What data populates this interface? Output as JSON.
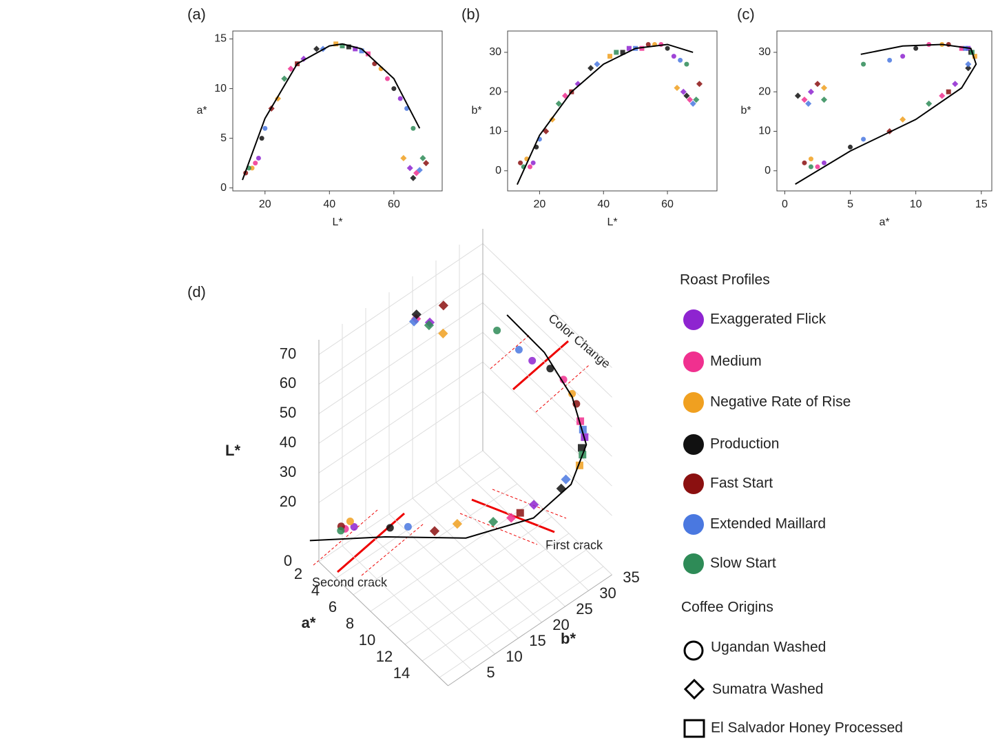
{
  "chart_data": [
    {
      "type": "scatter",
      "label": "(a)",
      "x_label": "L*",
      "y_label": "a*",
      "xlim": [
        10,
        75
      ],
      "ylim": [
        -0.3,
        15.8
      ],
      "xticks": [
        20,
        40,
        60
      ],
      "yticks": [
        0,
        5,
        10,
        15
      ],
      "series": [
        {
          "x": [
            18,
            32,
            48,
            62,
            65
          ],
          "values": [
            3,
            13,
            14,
            9,
            2
          ]
        },
        {
          "x": [
            17,
            28,
            52,
            58,
            67
          ],
          "values": [
            2.5,
            12,
            13.5,
            11,
            1.5
          ]
        },
        {
          "x": [
            16,
            24,
            42,
            56,
            63
          ],
          "values": [
            2,
            9,
            14.5,
            12,
            3
          ]
        },
        {
          "x": [
            19,
            36,
            46,
            60,
            66
          ],
          "values": [
            5,
            14,
            14.2,
            10,
            1
          ]
        },
        {
          "x": [
            14,
            22,
            30,
            54,
            70
          ],
          "values": [
            1.5,
            8,
            12.5,
            12.5,
            2.5
          ]
        },
        {
          "x": [
            20,
            38,
            50,
            64,
            68
          ],
          "values": [
            6,
            14,
            13.8,
            8,
            1.8
          ]
        },
        {
          "x": [
            15,
            26,
            44,
            66,
            69
          ],
          "values": [
            2,
            11,
            14.3,
            6,
            3
          ]
        }
      ],
      "fit": {
        "x": [
          13,
          20,
          30,
          40,
          44,
          50,
          60,
          68
        ],
        "values": [
          0.8,
          7,
          12.5,
          14.3,
          14.5,
          14,
          11,
          6
        ]
      }
    },
    {
      "type": "scatter",
      "label": "(b)",
      "x_label": "L*",
      "y_label": "b*",
      "xlim": [
        10,
        75.5
      ],
      "ylim": [
        -5.1,
        35.4
      ],
      "xticks": [
        20,
        40,
        60
      ],
      "yticks": [
        0,
        10,
        20,
        30
      ],
      "series": [
        {
          "x": [
            18,
            32,
            48,
            62,
            65
          ],
          "values": [
            2,
            22,
            31,
            29,
            20
          ]
        },
        {
          "x": [
            17,
            28,
            52,
            58,
            67
          ],
          "values": [
            1,
            19,
            31,
            32,
            18
          ]
        },
        {
          "x": [
            16,
            24,
            42,
            56,
            63
          ],
          "values": [
            3,
            13,
            29,
            32,
            21
          ]
        },
        {
          "x": [
            19,
            36,
            46,
            60,
            66
          ],
          "values": [
            6,
            26,
            30,
            31,
            19
          ]
        },
        {
          "x": [
            14,
            22,
            30,
            54,
            70
          ],
          "values": [
            2,
            10,
            20,
            32,
            22
          ]
        },
        {
          "x": [
            20,
            38,
            50,
            64,
            68
          ],
          "values": [
            8,
            27,
            31,
            28,
            17
          ]
        },
        {
          "x": [
            15,
            26,
            44,
            66,
            69
          ],
          "values": [
            1,
            17,
            30,
            27,
            18
          ]
        }
      ],
      "fit": {
        "x": [
          13,
          20,
          30,
          40,
          50,
          60,
          68
        ],
        "values": [
          -3.5,
          9,
          20,
          27,
          31,
          32,
          30
        ]
      }
    },
    {
      "type": "scatter",
      "label": "(c)",
      "x_label": "a*",
      "y_label": "b*",
      "xlim": [
        -0.6,
        15.8
      ],
      "ylim": [
        -5.1,
        35.4
      ],
      "xticks": [
        0,
        5,
        10,
        15
      ],
      "yticks": [
        0,
        10,
        20,
        30
      ],
      "series": [
        {
          "x": [
            3,
            13,
            14,
            9,
            2
          ],
          "values": [
            2,
            22,
            31,
            29,
            20
          ]
        },
        {
          "x": [
            2.5,
            12,
            13.5,
            11,
            1.5
          ],
          "values": [
            1,
            19,
            31,
            32,
            18
          ]
        },
        {
          "x": [
            2,
            9,
            14.5,
            12,
            3
          ],
          "values": [
            3,
            13,
            29,
            32,
            21
          ]
        },
        {
          "x": [
            5,
            14,
            14.2,
            10,
            1
          ],
          "values": [
            6,
            26,
            30,
            31,
            19
          ]
        },
        {
          "x": [
            1.5,
            8,
            12.5,
            12.5,
            2.5
          ],
          "values": [
            2,
            10,
            20,
            32,
            22
          ]
        },
        {
          "x": [
            6,
            14,
            13.8,
            8,
            1.8
          ],
          "values": [
            8,
            27,
            31,
            28,
            17
          ]
        },
        {
          "x": [
            2,
            11,
            14.3,
            6,
            3
          ],
          "values": [
            1,
            17,
            30,
            27,
            18
          ]
        }
      ],
      "fit": {
        "x": [
          0.8,
          5,
          10,
          13.5,
          14.6,
          14.2,
          12,
          9,
          5.8
        ],
        "values": [
          -3.4,
          5,
          13,
          21,
          27,
          31,
          32,
          31.6,
          29.5
        ]
      }
    },
    {
      "type": "scatter3d",
      "label": "(d)",
      "x_label": "a*",
      "y_label": "b*",
      "z_label": "L*",
      "xlim": [
        0,
        15
      ],
      "ylim": [
        0,
        35
      ],
      "zlim": [
        0,
        75
      ],
      "xticks": [
        2,
        4,
        6,
        8,
        10,
        12,
        14
      ],
      "yticks": [
        5,
        10,
        15,
        20,
        25,
        30,
        35
      ],
      "zticks": [
        0,
        20,
        30,
        40,
        50,
        60,
        70
      ],
      "series": [
        {
          "a": [
            3,
            13,
            14,
            9,
            2
          ],
          "b": [
            2,
            22,
            31,
            29,
            20
          ],
          "L": [
            18,
            32,
            48,
            62,
            65
          ]
        },
        {
          "a": [
            2.5,
            12,
            13.5,
            11,
            1.5
          ],
          "b": [
            1,
            19,
            31,
            32,
            18
          ],
          "L": [
            17,
            28,
            52,
            58,
            67
          ]
        },
        {
          "a": [
            2,
            9,
            14.5,
            12,
            3
          ],
          "b": [
            3,
            13,
            29,
            32,
            21
          ],
          "L": [
            16,
            24,
            42,
            56,
            63
          ]
        },
        {
          "a": [
            5,
            14,
            14.2,
            10,
            1
          ],
          "b": [
            6,
            26,
            30,
            31,
            19
          ],
          "L": [
            19,
            36,
            46,
            60,
            66
          ]
        },
        {
          "a": [
            1.5,
            8,
            12.5,
            12.5,
            2.5
          ],
          "b": [
            2,
            10,
            20,
            32,
            22
          ],
          "L": [
            14,
            22,
            30,
            54,
            70
          ]
        },
        {
          "a": [
            6,
            14,
            13.8,
            8,
            1.8
          ],
          "b": [
            8,
            27,
            31,
            28,
            17
          ],
          "L": [
            20,
            38,
            50,
            64,
            68
          ]
        },
        {
          "a": [
            2,
            11,
            14.3,
            6,
            3
          ],
          "b": [
            1,
            17,
            30,
            27,
            18
          ],
          "L": [
            15,
            26,
            44,
            66,
            69
          ]
        }
      ],
      "fit": {
        "a": [
          0.8,
          5,
          10,
          13.5,
          14.6,
          14.2,
          12,
          9,
          5.8
        ],
        "b": [
          -3.4,
          5,
          13,
          21,
          27,
          31,
          32,
          31.6,
          29.5
        ],
        "L": [
          13,
          17,
          22,
          30,
          38,
          46,
          55,
          62,
          68
        ]
      },
      "annotations": [
        "Color Change",
        "First crack",
        "Second crack"
      ]
    }
  ],
  "legend": {
    "roast_profiles": {
      "title": "Roast Profiles",
      "items": [
        {
          "name": "Exaggerated Flick",
          "color": "#8e24d0"
        },
        {
          "name": "Medium",
          "color": "#f0308f"
        },
        {
          "name": "Negative Rate of Rise",
          "color": "#f0a020"
        },
        {
          "name": "Production",
          "color": "#111111"
        },
        {
          "name": "Fast Start",
          "color": "#8b1010"
        },
        {
          "name": "Extended Maillard",
          "color": "#4a78e0"
        },
        {
          "name": "Slow Start",
          "color": "#2e8b57"
        }
      ]
    },
    "coffee_origins": {
      "title": "Coffee Origins",
      "items": [
        "Ugandan Washed",
        "Sumatra Washed",
        "El Salvador Honey Processed"
      ]
    }
  }
}
